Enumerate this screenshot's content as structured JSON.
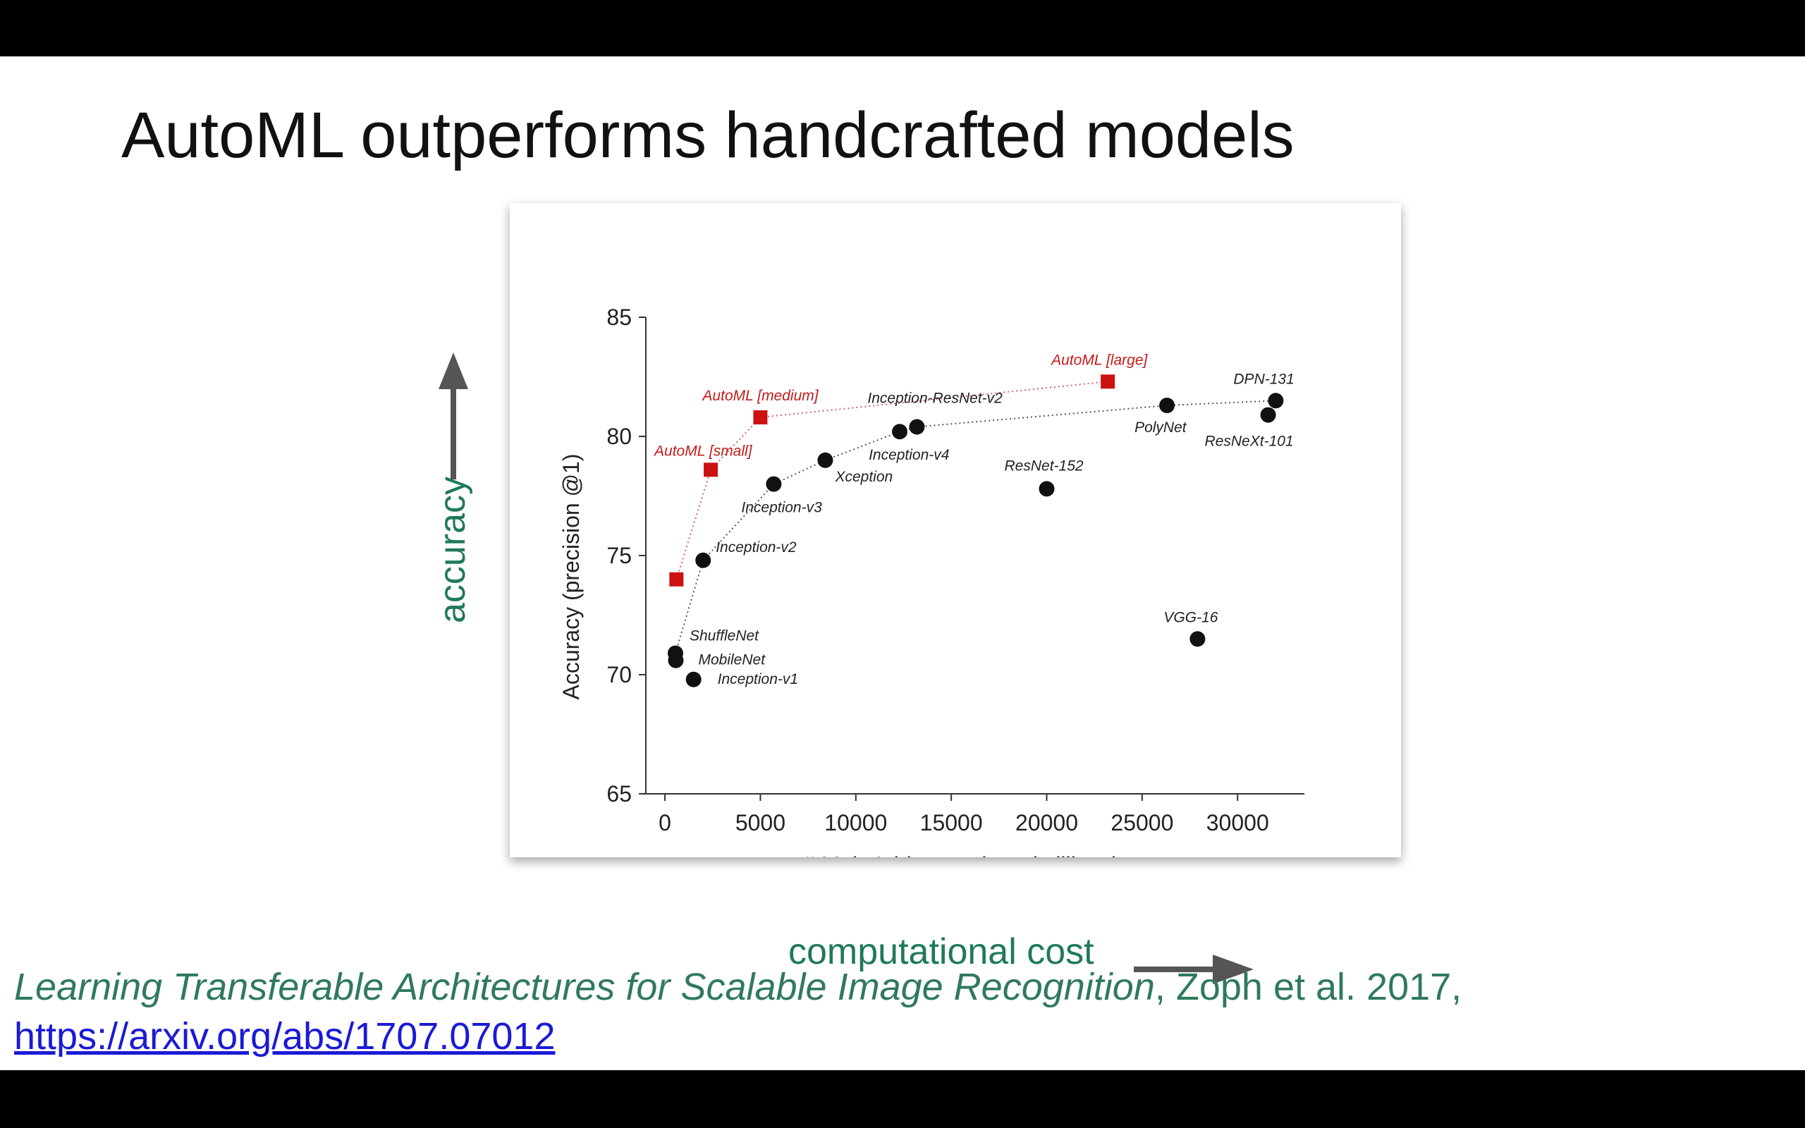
{
  "slide": {
    "title": "AutoML outperforms handcrafted models",
    "side_label_y": "accuracy",
    "side_label_x": "computational cost",
    "citation_title": "Learning Transferable Architectures for Scalable Image Recognition",
    "citation_rest": ", Zoph et al. 2017,",
    "citation_link": "https://arxiv.org/abs/1707.07012",
    "colors": {
      "accent_green": "#1f7a57",
      "automl_red": "#cc1111",
      "link_blue": "#1a1ad6"
    }
  },
  "chart_data": {
    "type": "scatter",
    "xlabel": "# Mult-Add operations (millions)",
    "ylabel": "Accuracy (precision @1)",
    "xlim": [
      -1000,
      33500
    ],
    "ylim": [
      65,
      85
    ],
    "xticks": [
      0,
      5000,
      10000,
      15000,
      20000,
      25000,
      30000
    ],
    "yticks": [
      65,
      70,
      75,
      80,
      85
    ],
    "grid": false,
    "series": [
      {
        "color": "#cc1111",
        "marker": "square",
        "line": "dotted",
        "points": [
          {
            "name": "",
            "x": 600,
            "y": 74.0
          },
          {
            "name": "AutoML [small]",
            "x": 2400,
            "y": 78.6
          },
          {
            "name": "AutoML [medium]",
            "x": 5000,
            "y": 80.8
          },
          {
            "name": "AutoML [large]",
            "x": 23200,
            "y": 82.3
          }
        ]
      },
      {
        "color": "#111111",
        "marker": "circle",
        "line": "dotted",
        "points": [
          {
            "name": "ShuffleNet",
            "x": 550,
            "y": 70.9
          },
          {
            "name": "Inception-v2",
            "x": 2000,
            "y": 74.8
          },
          {
            "name": "Inception-v3",
            "x": 5700,
            "y": 78.0
          },
          {
            "name": "Xception",
            "x": 8400,
            "y": 79.0
          },
          {
            "name": "Inception-v4",
            "x": 12300,
            "y": 80.2
          },
          {
            "name": "Inception-ResNet-v2",
            "x": 13200,
            "y": 80.4
          },
          {
            "name": "PolyNet",
            "x": 26300,
            "y": 81.3
          },
          {
            "name": "DPN-131",
            "x": 32000,
            "y": 81.5
          }
        ]
      },
      {
        "color": "#111111",
        "marker": "circle",
        "line": "none",
        "points": [
          {
            "name": "MobileNet",
            "x": 570,
            "y": 70.6
          },
          {
            "name": "Inception-v1",
            "x": 1500,
            "y": 69.8
          },
          {
            "name": "ResNet-152",
            "x": 20000,
            "y": 77.8
          },
          {
            "name": "ResNeXt-101",
            "x": 31600,
            "y": 80.9
          },
          {
            "name": "VGG-16",
            "x": 27900,
            "y": 71.5
          }
        ]
      }
    ]
  }
}
